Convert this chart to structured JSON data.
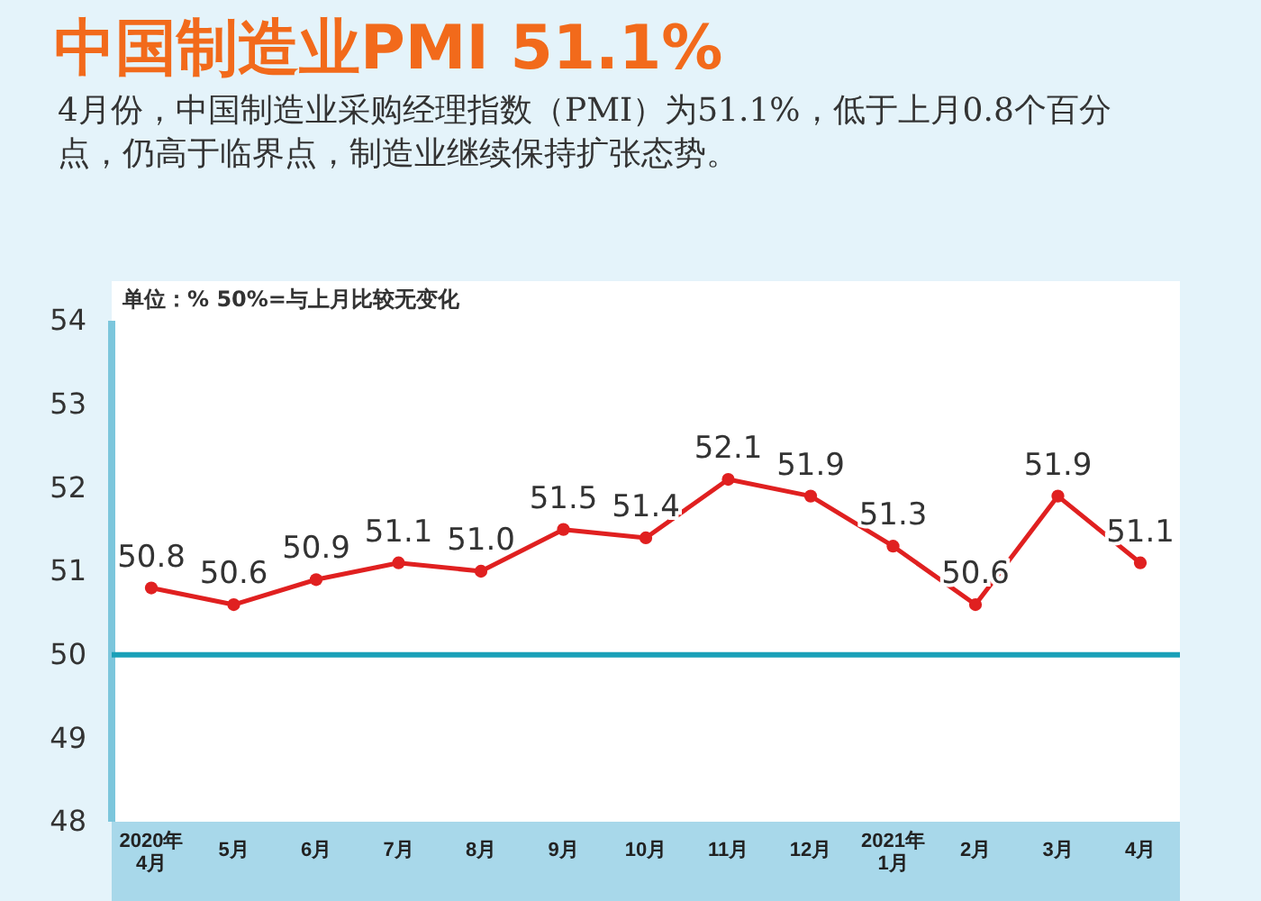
{
  "chart_data": {
    "type": "line",
    "title": "中国制造业PMI 51.1%",
    "subtitle": "4月份，中国制造业采购经理指数（PMI）为51.1%，低于上月0.8个百分点，仍高于临界点，制造业继续保持扩张态势。",
    "annotations": [
      "单位：% 50%=与上月比较无变化"
    ],
    "categories": [
      "2020年4月",
      "5月",
      "6月",
      "7月",
      "8月",
      "9月",
      "10月",
      "11月",
      "12月",
      "2021年1月",
      "2月",
      "3月",
      "4月"
    ],
    "series": [
      {
        "color": "#e02020",
        "values": [
          50.8,
          50.6,
          50.9,
          51.1,
          51.0,
          51.5,
          51.4,
          52.1,
          51.9,
          51.3,
          50.6,
          51.9,
          51.1
        ]
      }
    ],
    "ylim": [
      48,
      54
    ],
    "yticks": [
      48,
      49,
      50,
      51,
      52,
      53,
      54
    ],
    "ref_lines": [
      {
        "axis": "y",
        "value": 50,
        "color": "#1aa0b8"
      }
    ],
    "value_labels": [
      "50.8",
      "50.6",
      "50.9",
      "51.1",
      "51.0",
      "51.5",
      "51.4",
      "52.1",
      "51.9",
      "51.3",
      "50.6",
      "51.9",
      "51.1"
    ],
    "marker": "circle",
    "grid": false
  }
}
